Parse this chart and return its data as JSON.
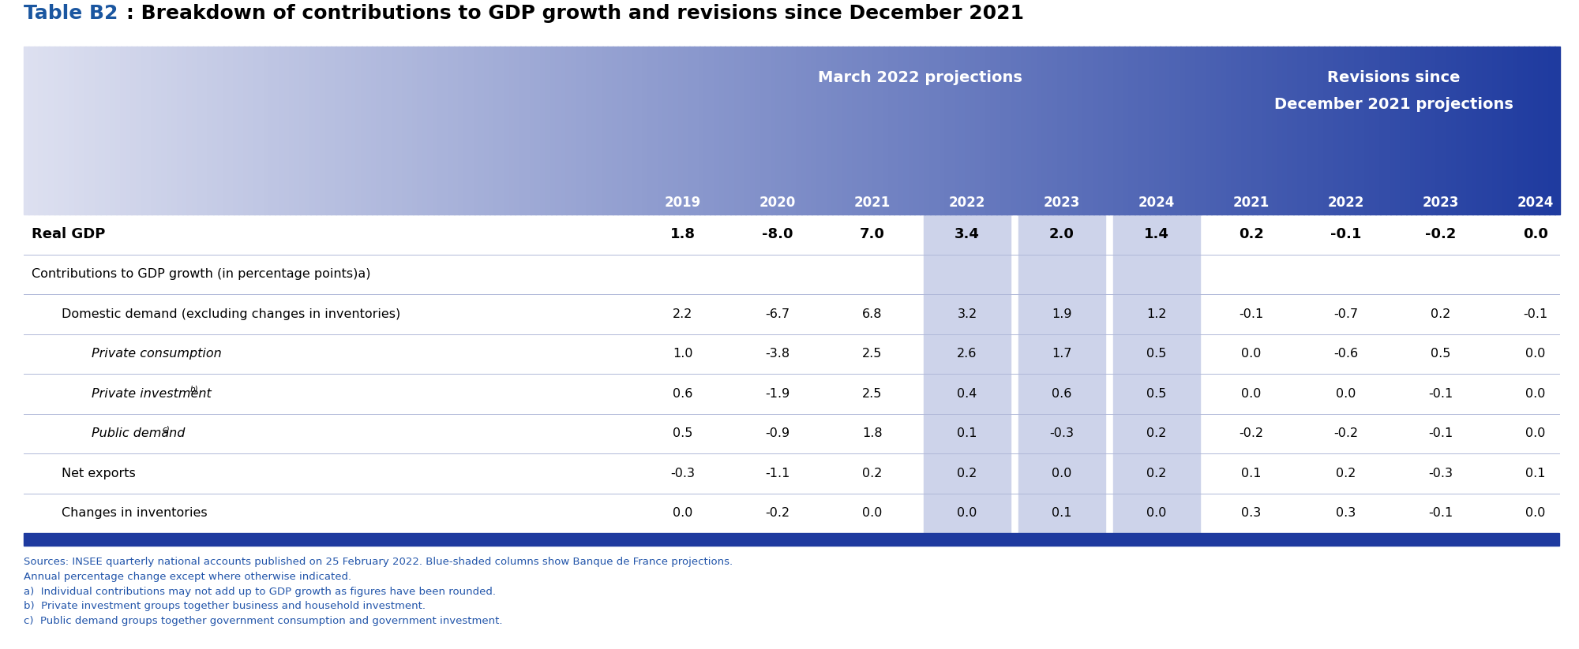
{
  "title_blue": "Table B2",
  "title_black": ": Breakdown of contributions to GDP growth and revisions since December 2021",
  "header_group1": "March 2022 projections",
  "header_group2_line1": "Revisions since",
  "header_group2_line2": "December 2021 projections",
  "col_years": [
    "2019",
    "2020",
    "2021",
    "2022",
    "2023",
    "2024",
    "2021",
    "2022",
    "2023",
    "2024"
  ],
  "rows": [
    {
      "label": "Real GDP",
      "bold": true,
      "italic": false,
      "indent": 0,
      "values": [
        "1.8",
        "-8.0",
        "7.0",
        "3.4",
        "2.0",
        "1.4",
        "0.2",
        "-0.1",
        "-0.2",
        "0.0"
      ]
    },
    {
      "label": "Contributions to GDP growth (in percentage points)a)",
      "superscript_a": true,
      "bold": false,
      "italic": false,
      "indent": 0,
      "values": [
        "",
        "",
        "",
        "",
        "",
        "",
        "",
        "",
        "",
        ""
      ]
    },
    {
      "label": "Domestic demand (excluding changes in inventories)",
      "bold": false,
      "italic": false,
      "indent": 1,
      "values": [
        "2.2",
        "-6.7",
        "6.8",
        "3.2",
        "1.9",
        "1.2",
        "-0.1",
        "-0.7",
        "0.2",
        "-0.1"
      ]
    },
    {
      "label": "Private consumption",
      "bold": false,
      "italic": true,
      "indent": 2,
      "values": [
        "1.0",
        "-3.8",
        "2.5",
        "2.6",
        "1.7",
        "0.5",
        "0.0",
        "-0.6",
        "0.5",
        "0.0"
      ]
    },
    {
      "label": "Private investment",
      "superscript": "b)",
      "bold": false,
      "italic": true,
      "indent": 2,
      "values": [
        "0.6",
        "-1.9",
        "2.5",
        "0.4",
        "0.6",
        "0.5",
        "0.0",
        "0.0",
        "-0.1",
        "0.0"
      ]
    },
    {
      "label": "Public demand",
      "superscript": "c)",
      "bold": false,
      "italic": true,
      "indent": 2,
      "values": [
        "0.5",
        "-0.9",
        "1.8",
        "0.1",
        "-0.3",
        "0.2",
        "-0.2",
        "-0.2",
        "-0.1",
        "0.0"
      ]
    },
    {
      "label": "Net exports",
      "bold": false,
      "italic": false,
      "indent": 1,
      "values": [
        "-0.3",
        "-1.1",
        "0.2",
        "0.2",
        "0.0",
        "0.2",
        "0.1",
        "0.2",
        "-0.3",
        "0.1"
      ]
    },
    {
      "label": "Changes in inventories",
      "bold": false,
      "italic": false,
      "indent": 1,
      "values": [
        "0.0",
        "-0.2",
        "0.0",
        "0.0",
        "0.1",
        "0.0",
        "0.3",
        "0.3",
        "-0.1",
        "0.0"
      ]
    }
  ],
  "footnotes": [
    "Sources: INSEE quarterly national accounts published on 25 February 2022. Blue-shaded columns show Banque de France projections.",
    "Annual percentage change except where otherwise indicated.",
    "a)  Individual contributions may not add up to GDP growth as figures have been rounded.",
    "b)  Private investment groups together business and household investment.",
    "c)  Public demand groups together government consumption and government investment."
  ],
  "title_color_blue": "#1a56a0",
  "title_color_black": "#000000",
  "footnote_color": "#2255aa",
  "body_text_color": "#000000",
  "grad_color_left": "#dde0f0",
  "grad_color_right": "#1e3a9f",
  "shade_col_color": "#cdd3ea",
  "bottom_bar_color": "#1e3a9f",
  "divider_color": "#b0b8d8"
}
